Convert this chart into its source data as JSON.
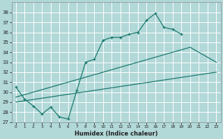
{
  "xlabel": "Humidex (Indice chaleur)",
  "bg_color": "#b2d8d8",
  "grid_color": "#ffffff",
  "line_color": "#1a7a6e",
  "xlim": [
    -0.5,
    23.5
  ],
  "ylim": [
    27,
    39
  ],
  "xticks": [
    0,
    1,
    2,
    3,
    4,
    5,
    6,
    7,
    8,
    9,
    10,
    11,
    12,
    13,
    14,
    15,
    16,
    17,
    18,
    19,
    20,
    21,
    22,
    23
  ],
  "yticks": [
    27,
    28,
    29,
    30,
    31,
    32,
    33,
    34,
    35,
    36,
    37,
    38
  ],
  "curve_x": [
    0,
    1,
    2,
    3,
    4,
    5,
    6,
    7,
    8,
    9,
    10,
    11,
    12,
    13,
    14,
    15,
    16,
    17,
    18,
    19
  ],
  "curve_y": [
    30.5,
    29.3,
    28.6,
    27.8,
    28.5,
    27.5,
    27.3,
    30.2,
    33.0,
    33.3,
    35.2,
    35.5,
    35.5,
    35.8,
    36.0,
    37.2,
    37.9,
    36.5,
    36.3,
    35.8
  ],
  "line2_x": [
    0,
    23
  ],
  "line2_y": [
    29.0,
    32.0
  ],
  "line3_x": [
    0,
    20,
    23
  ],
  "line3_y": [
    29.5,
    34.5,
    33.0
  ]
}
